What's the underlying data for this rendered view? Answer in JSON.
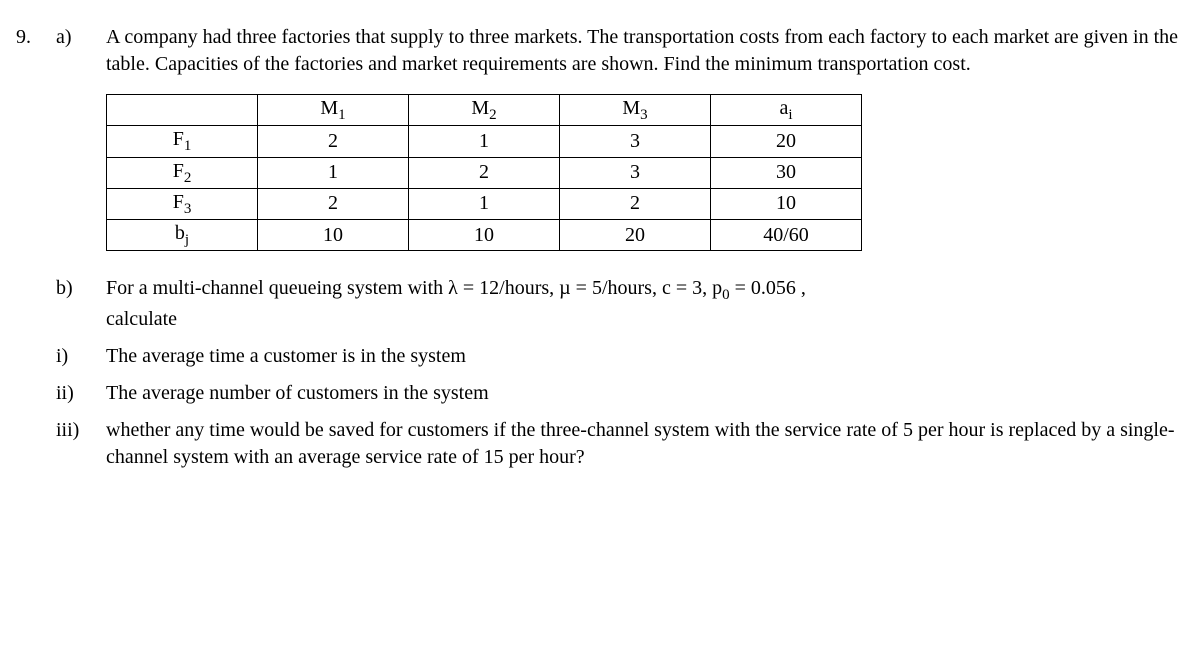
{
  "q": {
    "number": "9.",
    "a": {
      "label": "a)",
      "text": "A company had three factories that supply to three markets. The transportation costs from each factory to each market are given in the table. Capacities of the factories and market requirements are shown. Find the minimum transportation cost.",
      "table": {
        "headers": [
          "",
          "M",
          "M",
          "M",
          "a"
        ],
        "header_subs": [
          "",
          "1",
          "2",
          "3",
          "i"
        ],
        "rows": [
          {
            "label": "F",
            "label_sub": "1",
            "cells": [
              "2",
              "1",
              "3",
              "20"
            ]
          },
          {
            "label": "F",
            "label_sub": "2",
            "cells": [
              "1",
              "2",
              "3",
              "30"
            ]
          },
          {
            "label": "F",
            "label_sub": "3",
            "cells": [
              "2",
              "1",
              "2",
              "10"
            ]
          },
          {
            "label": "b",
            "label_sub": "j",
            "cells": [
              "10",
              "10",
              "20",
              "40/60"
            ]
          }
        ]
      }
    },
    "b": {
      "label": "b)",
      "intro": "For a multi-channel queueing system with λ = 12/hours, µ = 5/hours, c = 3, p",
      "p_sub": "0",
      "p_tail": " = 0.056 ,",
      "intro2": "calculate",
      "items": [
        {
          "label": "i)",
          "text": "The average time a customer is in the system"
        },
        {
          "label": "ii)",
          "text": "The average number of customers in the system"
        },
        {
          "label": "iii)",
          "text": "whether any time would be saved for customers if the three-channel system with the service rate of 5 per hour is replaced by a single-channel system with an average service rate of 15 per hour?"
        }
      ]
    }
  },
  "layout": {
    "col_widths": {
      "row_label": 150,
      "market": 150,
      "supply": 150
    }
  }
}
